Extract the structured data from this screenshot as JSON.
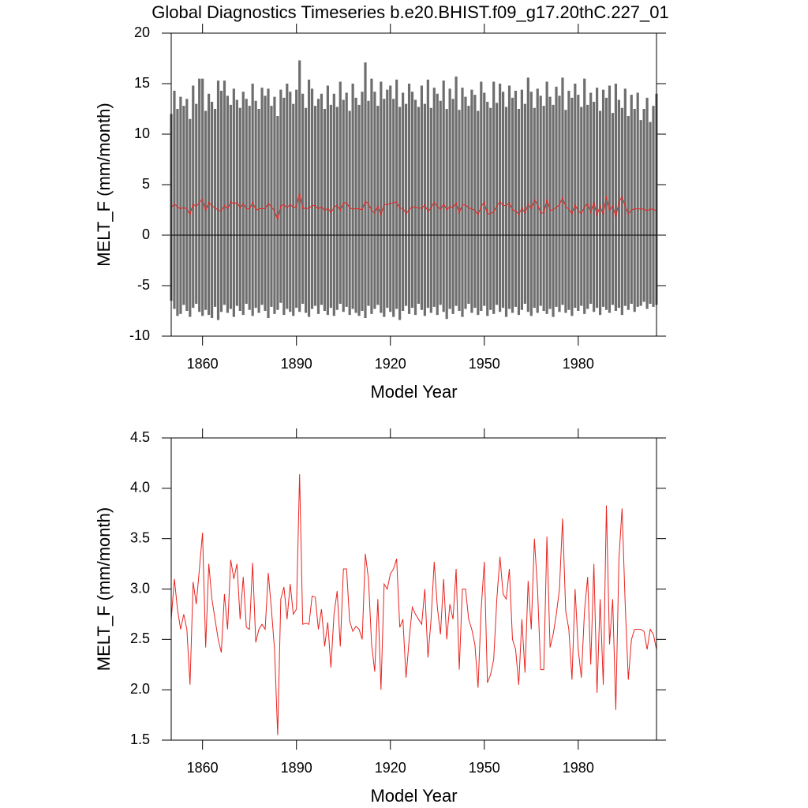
{
  "chart_data": [
    {
      "type": "line",
      "title": "Global Diagnostics Timeseries b.e20.BHIST.f09_g17.20thC.227_01",
      "xlabel": "Model Year",
      "ylabel": "MELT_F (mm/month)",
      "x": [
        1850,
        1851,
        1852,
        1853,
        1854,
        1855,
        1856,
        1857,
        1858,
        1859,
        1860,
        1861,
        1862,
        1863,
        1864,
        1865,
        1866,
        1867,
        1868,
        1869,
        1870,
        1871,
        1872,
        1873,
        1874,
        1875,
        1876,
        1877,
        1878,
        1879,
        1880,
        1881,
        1882,
        1883,
        1884,
        1885,
        1886,
        1887,
        1888,
        1889,
        1890,
        1891,
        1892,
        1893,
        1894,
        1895,
        1896,
        1897,
        1898,
        1899,
        1900,
        1901,
        1902,
        1903,
        1904,
        1905,
        1906,
        1907,
        1908,
        1909,
        1910,
        1911,
        1912,
        1913,
        1914,
        1915,
        1916,
        1917,
        1918,
        1919,
        1920,
        1921,
        1922,
        1923,
        1924,
        1925,
        1926,
        1927,
        1928,
        1929,
        1930,
        1931,
        1932,
        1933,
        1934,
        1935,
        1936,
        1937,
        1938,
        1939,
        1940,
        1941,
        1942,
        1943,
        1944,
        1945,
        1946,
        1947,
        1948,
        1949,
        1950,
        1951,
        1952,
        1953,
        1954,
        1955,
        1956,
        1957,
        1958,
        1959,
        1960,
        1961,
        1962,
        1963,
        1964,
        1965,
        1966,
        1967,
        1968,
        1969,
        1970,
        1971,
        1972,
        1973,
        1974,
        1975,
        1976,
        1977,
        1978,
        1979,
        1980,
        1981,
        1982,
        1983,
        1984,
        1985,
        1986,
        1987,
        1988,
        1989,
        1990,
        1991,
        1992,
        1993,
        1994,
        1995,
        1996,
        1997,
        1998,
        1999,
        2000,
        2001,
        2002,
        2003,
        2004,
        2005
      ],
      "series": [
        {
          "color": "#555555",
          "values": [
            12,
            14.3,
            12.5,
            13.7,
            12.8,
            13.5,
            11.5,
            14.8,
            13,
            15.5,
            15.5,
            12.3,
            14,
            13.2,
            12.5,
            15.3,
            14.3,
            15.3,
            13.8,
            12.9,
            14.5,
            13.4,
            12.6,
            14.2,
            13.5,
            12.8,
            15,
            13.3,
            12.5,
            14.6,
            13.8,
            14.5,
            12.8,
            13.7,
            11.8,
            14.4,
            13.6,
            15,
            14.2,
            13,
            14.4,
            17.3,
            14,
            12.6,
            15.4,
            14.5,
            12.8,
            13.5,
            14,
            12.5,
            14.8,
            12.9,
            14,
            12.7,
            15.2,
            13.4,
            14.1,
            12.3,
            15,
            13.6,
            12.9,
            14.2,
            17.1,
            13.3,
            15.5,
            14.2,
            12.8,
            15.2,
            13.5,
            14.4,
            14.8,
            13.5,
            15.4,
            12.7,
            14.1,
            13,
            15,
            14.2,
            13.4,
            12.7,
            14.8,
            13,
            15.4,
            12.6,
            14.6,
            14,
            13.3,
            15.3,
            12.5,
            14.5,
            13.5,
            15.7,
            12.4,
            14.6,
            13.7,
            12.8,
            14.4,
            13.9,
            12.3,
            15.2,
            14.1,
            13.2,
            12.6,
            15.2,
            13.1,
            15,
            14.2,
            12.7,
            14.8,
            13.6,
            14.3,
            12.5,
            14.4,
            13,
            15.6,
            14.2,
            12.6,
            14.5,
            13.8,
            12.8,
            15.2,
            13.7,
            12.9,
            14.7,
            13.8,
            15.6,
            12.4,
            14.3,
            13.6,
            15,
            13.9,
            12.7,
            15.5,
            12.9,
            14.1,
            13.2,
            14.6,
            12.3,
            14.4,
            13.6,
            14.8,
            12.1,
            15,
            13.4,
            12.6,
            14.5,
            11.8,
            13.9,
            12.5,
            14.1,
            11.4,
            12.5,
            13.6,
            11.2,
            12.8,
            14
          ],
          "lows": [
            -6.5,
            -7.3,
            -8,
            -7.8,
            -6.9,
            -7.5,
            -8.1,
            -7.2,
            -6.8,
            -7.6,
            -8,
            -7.4,
            -7.9,
            -8.2,
            -7.1,
            -8.4,
            -7.6,
            -6.9,
            -7.7,
            -7.3,
            -8.1,
            -7,
            -7.5,
            -7.9,
            -6.8,
            -7.4,
            -8,
            -7.2,
            -7.7,
            -6.9,
            -7.5,
            -8.2,
            -7.1,
            -7.8,
            -7.4,
            -6.7,
            -7.9,
            -7.3,
            -7.6,
            -8,
            -7.2,
            -7.6,
            -6.8,
            -7.7,
            -8.1,
            -7.3,
            -7,
            -7.8,
            -6.9,
            -7.5,
            -7.9,
            -7.2,
            -8,
            -7.4,
            -6.8,
            -7.6,
            -7.1,
            -7.9,
            -7.3,
            -7.7,
            -8,
            -7.5,
            -8.2,
            -7,
            -7.8,
            -7.3,
            -6.9,
            -7.7,
            -8.1,
            -7.2,
            -7.6,
            -8.1,
            -7.3,
            -8.4,
            -7.5,
            -7,
            -7.8,
            -7.2,
            -7.9,
            -6.8,
            -7.4,
            -8,
            -7.2,
            -7.7,
            -7.1,
            -7.9,
            -6.9,
            -7.6,
            -8.3,
            -7.3,
            -7.8,
            -7,
            -7.5,
            -8.1,
            -7.3,
            -6.8,
            -7.7,
            -7.2,
            -7.9,
            -7.5,
            -7,
            -8,
            -7.4,
            -7.8,
            -6.9,
            -7.6,
            -7.2,
            -8.1,
            -7.3,
            -7.7,
            -7.1,
            -7.9,
            -7.4,
            -6.8,
            -7.6,
            -8,
            -7.2,
            -7.7,
            -7,
            -7.5,
            -7.8,
            -7.3,
            -8.1,
            -7.1,
            -7.6,
            -6.9,
            -7.7,
            -7.4,
            -8,
            -7.2,
            -7.5,
            -7,
            -7.8,
            -7.3,
            -6.8,
            -7.6,
            -7.2,
            -7.9,
            -7.1,
            -7.4,
            -7.7,
            -6.9,
            -7.5,
            -7.2,
            -7.9,
            -7,
            -7.4,
            -6.8,
            -7.6,
            -7.1,
            -7,
            -6.6,
            -7.3,
            -6.8,
            -7.1,
            -6.9
          ]
        },
        {
          "color": "#e8231f",
          "values": [
            2.7,
            3.1,
            2.8,
            2.6,
            2.75,
            2.6,
            2.05,
            3.07,
            2.85,
            3.2,
            3.56,
            2.42,
            3.25,
            2.9,
            2.7,
            2.5,
            2.37,
            2.95,
            2.6,
            3.29,
            3.1,
            3.25,
            2.7,
            3.12,
            2.62,
            2.6,
            3.26,
            2.47,
            2.6,
            2.65,
            2.6,
            3.16,
            2.8,
            2.4,
            1.55,
            2.9,
            3.02,
            2.7,
            3.05,
            2.75,
            2.8,
            4.14,
            2.65,
            2.66,
            2.65,
            2.93,
            2.92,
            2.6,
            2.8,
            2.43,
            2.67,
            2.22,
            2.75,
            2.98,
            2.43,
            3.2,
            3.2,
            2.68,
            2.58,
            2.63,
            2.6,
            2.5,
            3.35,
            3.1,
            2.45,
            2.18,
            2.9,
            2.0,
            3.05,
            3.0,
            3.15,
            3.2,
            3.3,
            2.62,
            2.7,
            2.12,
            2.5,
            2.82,
            2.75,
            2.7,
            2.65,
            3.0,
            2.32,
            2.7,
            3.27,
            2.82,
            2.55,
            3.1,
            2.5,
            2.85,
            2.7,
            3.2,
            2.2,
            3.0,
            3.0,
            2.7,
            2.6,
            2.45,
            2.02,
            2.8,
            3.27,
            2.07,
            2.15,
            2.3,
            2.9,
            3.32,
            2.95,
            2.9,
            3.2,
            2.5,
            2.4,
            2.05,
            2.7,
            2.17,
            3.08,
            2.6,
            3.5,
            3.0,
            2.2,
            2.2,
            3.52,
            2.42,
            2.55,
            2.75,
            3.0,
            3.7,
            2.78,
            2.6,
            2.1,
            3.0,
            2.4,
            2.12,
            2.78,
            3.12,
            2.25,
            3.25,
            1.97,
            2.9,
            2.05,
            3.83,
            2.45,
            2.9,
            1.8,
            3.3,
            3.8,
            2.85,
            2.1,
            2.5,
            2.6,
            2.6,
            2.6,
            2.58,
            2.4,
            2.6,
            2.55,
            2.4
          ]
        }
      ],
      "xlim": [
        1850,
        2005
      ],
      "ylim": [
        -10,
        20
      ],
      "xticks": [
        1860,
        1890,
        1920,
        1950,
        1980
      ],
      "yticks": [
        -10,
        -5,
        0,
        5,
        10,
        15,
        20
      ]
    },
    {
      "type": "line",
      "xlabel": "Model Year",
      "ylabel": "MELT_F (mm/month)",
      "x": [
        1850,
        1851,
        1852,
        1853,
        1854,
        1855,
        1856,
        1857,
        1858,
        1859,
        1860,
        1861,
        1862,
        1863,
        1864,
        1865,
        1866,
        1867,
        1868,
        1869,
        1870,
        1871,
        1872,
        1873,
        1874,
        1875,
        1876,
        1877,
        1878,
        1879,
        1880,
        1881,
        1882,
        1883,
        1884,
        1885,
        1886,
        1887,
        1888,
        1889,
        1890,
        1891,
        1892,
        1893,
        1894,
        1895,
        1896,
        1897,
        1898,
        1899,
        1900,
        1901,
        1902,
        1903,
        1904,
        1905,
        1906,
        1907,
        1908,
        1909,
        1910,
        1911,
        1912,
        1913,
        1914,
        1915,
        1916,
        1917,
        1918,
        1919,
        1920,
        1921,
        1922,
        1923,
        1924,
        1925,
        1926,
        1927,
        1928,
        1929,
        1930,
        1931,
        1932,
        1933,
        1934,
        1935,
        1936,
        1937,
        1938,
        1939,
        1940,
        1941,
        1942,
        1943,
        1944,
        1945,
        1946,
        1947,
        1948,
        1949,
        1950,
        1951,
        1952,
        1953,
        1954,
        1955,
        1956,
        1957,
        1958,
        1959,
        1960,
        1961,
        1962,
        1963,
        1964,
        1965,
        1966,
        1967,
        1968,
        1969,
        1970,
        1971,
        1972,
        1973,
        1974,
        1975,
        1976,
        1977,
        1978,
        1979,
        1980,
        1981,
        1982,
        1983,
        1984,
        1985,
        1986,
        1987,
        1988,
        1989,
        1990,
        1991,
        1992,
        1993,
        1994,
        1995,
        1996,
        1997,
        1998,
        1999,
        2000,
        2001,
        2002,
        2003,
        2004,
        2005
      ],
      "series": [
        {
          "color": "#e8231f",
          "values": [
            2.7,
            3.1,
            2.8,
            2.6,
            2.75,
            2.6,
            2.05,
            3.07,
            2.85,
            3.2,
            3.56,
            2.42,
            3.25,
            2.9,
            2.7,
            2.5,
            2.37,
            2.95,
            2.6,
            3.29,
            3.1,
            3.25,
            2.7,
            3.12,
            2.62,
            2.6,
            3.26,
            2.47,
            2.6,
            2.65,
            2.6,
            3.16,
            2.8,
            2.4,
            1.55,
            2.9,
            3.02,
            2.7,
            3.05,
            2.75,
            2.8,
            4.14,
            2.65,
            2.66,
            2.65,
            2.93,
            2.92,
            2.6,
            2.8,
            2.43,
            2.67,
            2.22,
            2.75,
            2.98,
            2.43,
            3.2,
            3.2,
            2.68,
            2.58,
            2.63,
            2.6,
            2.5,
            3.35,
            3.1,
            2.45,
            2.18,
            2.9,
            2.0,
            3.05,
            3.0,
            3.15,
            3.2,
            3.3,
            2.62,
            2.7,
            2.12,
            2.5,
            2.82,
            2.75,
            2.7,
            2.65,
            3.0,
            2.32,
            2.7,
            3.27,
            2.82,
            2.55,
            3.1,
            2.5,
            2.85,
            2.7,
            3.2,
            2.2,
            3.0,
            3.0,
            2.7,
            2.6,
            2.45,
            2.02,
            2.8,
            3.27,
            2.07,
            2.15,
            2.3,
            2.9,
            3.32,
            2.95,
            2.9,
            3.2,
            2.5,
            2.4,
            2.05,
            2.7,
            2.17,
            3.08,
            2.6,
            3.5,
            3.0,
            2.2,
            2.2,
            3.52,
            2.42,
            2.55,
            2.75,
            3.0,
            3.7,
            2.78,
            2.6,
            2.1,
            3.0,
            2.4,
            2.12,
            2.78,
            3.12,
            2.25,
            3.25,
            1.97,
            2.9,
            2.05,
            3.83,
            2.45,
            2.9,
            1.8,
            3.3,
            3.8,
            2.85,
            2.1,
            2.5,
            2.6,
            2.6,
            2.6,
            2.58,
            2.4,
            2.6,
            2.55,
            2.4
          ]
        }
      ],
      "xlim": [
        1850,
        2005
      ],
      "ylim": [
        1.5,
        4.5
      ],
      "xticks": [
        1860,
        1890,
        1920,
        1950,
        1980
      ],
      "yticks": [
        {
          "value": 1.5,
          "label": "1.5"
        },
        {
          "value": 2,
          "label": "2.0"
        },
        {
          "value": 2.5,
          "label": "2.5"
        },
        {
          "value": 3,
          "label": "3.0"
        },
        {
          "value": 3.5,
          "label": "3.5"
        },
        {
          "value": 4,
          "label": "4.0"
        },
        {
          "value": 4.5,
          "label": "4.5"
        }
      ]
    }
  ]
}
